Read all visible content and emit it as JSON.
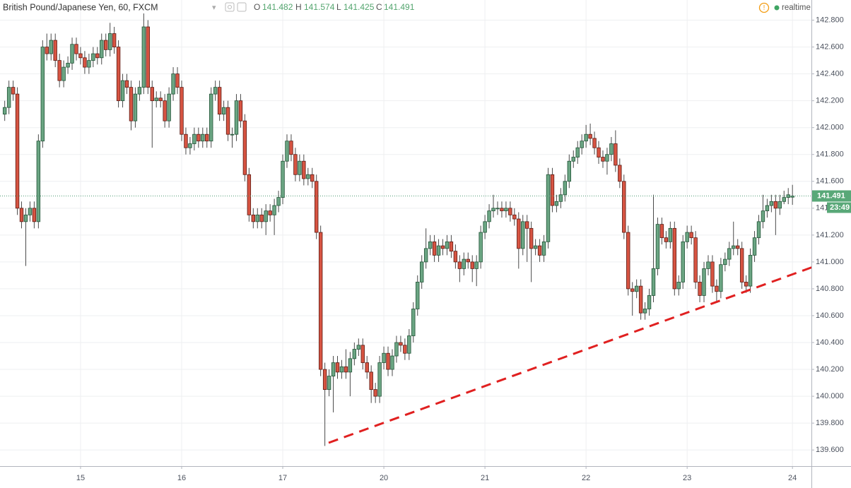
{
  "chart_data": {
    "type": "candlestick",
    "title": "British Pound/Japanese Yen, 60, FXCM",
    "ohlc_legend": [
      {
        "label": "O",
        "value": "141.482"
      },
      {
        "label": "H",
        "value": "141.574"
      },
      {
        "label": "L",
        "value": "141.425"
      },
      {
        "label": "C",
        "value": "141.491"
      }
    ],
    "status": "realtime",
    "last_price_label": "141.491",
    "countdown": "23:49",
    "up_color": "#6ba583",
    "down_color": "#d75442",
    "grid": true,
    "xlim": [
      -1.12,
      191.5
    ],
    "xticks": [
      {
        "value": 18,
        "label": "15"
      },
      {
        "value": 42,
        "label": "16"
      },
      {
        "value": 66,
        "label": "17"
      },
      {
        "value": 90,
        "label": "20"
      },
      {
        "value": 114,
        "label": "21"
      },
      {
        "value": 138,
        "label": "22"
      },
      {
        "value": 162,
        "label": "23"
      },
      {
        "value": 187,
        "label": "24"
      }
    ],
    "ylim": [
      139.48,
      142.95
    ],
    "yticks": [
      {
        "value": 139.6,
        "label": "139.600"
      },
      {
        "value": 139.8,
        "label": "139.800"
      },
      {
        "value": 140.0,
        "label": "140.000"
      },
      {
        "value": 140.2,
        "label": "140.200"
      },
      {
        "value": 140.4,
        "label": "140.400"
      },
      {
        "value": 140.6,
        "label": "140.600"
      },
      {
        "value": 140.8,
        "label": "140.800"
      },
      {
        "value": 141.0,
        "label": "141.000"
      },
      {
        "value": 141.2,
        "label": "141.200"
      },
      {
        "value": 141.4,
        "label": "141.400"
      },
      {
        "value": 141.6,
        "label": "141.600"
      },
      {
        "value": 141.8,
        "label": "141.800"
      },
      {
        "value": 142.0,
        "label": "142.000"
      },
      {
        "value": 142.2,
        "label": "142.200"
      },
      {
        "value": 142.4,
        "label": "142.400"
      },
      {
        "value": 142.6,
        "label": "142.600"
      },
      {
        "value": 142.8,
        "label": "142.800"
      }
    ],
    "open": [
      142.1,
      142.15,
      142.3,
      142.25,
      141.4,
      141.3,
      141.35,
      141.4,
      141.3,
      141.9,
      142.6,
      142.55,
      142.65,
      142.5,
      142.35,
      142.45,
      142.48,
      142.62,
      142.55,
      142.52,
      142.45,
      142.5,
      142.55,
      142.52,
      142.65,
      142.58,
      142.7,
      142.6,
      142.2,
      142.35,
      142.3,
      142.05,
      142.25,
      142.3,
      142.75,
      142.3,
      142.2,
      142.22,
      142.2,
      142.05,
      142.25,
      142.4,
      142.3,
      141.95,
      141.85,
      141.88,
      141.95,
      141.9,
      141.95,
      141.9,
      142.25,
      142.3,
      142.1,
      142.15,
      141.95,
      141.95,
      142.2,
      142.05,
      141.65,
      141.35,
      141.3,
      141.35,
      141.3,
      141.38,
      141.35,
      141.42,
      141.48,
      141.75,
      141.9,
      141.8,
      141.65,
      141.75,
      141.62,
      141.65,
      141.6,
      141.22,
      140.2,
      140.05,
      140.15,
      140.25,
      140.18,
      140.22,
      140.18,
      140.28,
      140.35,
      140.38,
      140.25,
      140.18,
      140.05,
      140.0,
      140.25,
      140.32,
      140.2,
      140.3,
      140.4,
      140.38,
      140.32,
      140.45,
      140.65,
      140.85,
      141.0,
      141.1,
      141.15,
      141.05,
      141.12,
      141.1,
      141.15,
      141.08,
      141.0,
      140.95,
      141.02,
      141.0,
      140.95,
      141.0,
      141.22,
      141.3,
      141.38,
      141.4,
      141.4,
      141.38,
      141.4,
      141.35,
      141.32,
      141.1,
      141.3,
      141.25,
      141.1,
      141.12,
      141.05,
      141.15,
      141.65,
      141.42,
      141.45,
      141.5,
      141.6,
      141.75,
      141.78,
      141.85,
      141.9,
      141.95,
      141.92,
      141.85,
      141.78,
      141.75,
      141.8,
      141.88,
      141.72,
      141.6,
      141.22,
      140.8,
      140.78,
      140.82,
      140.62,
      140.65,
      140.75,
      140.95,
      141.28,
      141.18,
      141.15,
      141.25,
      140.8,
      140.85,
      141.15,
      141.22,
      141.18,
      140.85,
      140.75,
      140.95,
      141.0,
      140.82,
      140.78,
      140.98,
      141.02,
      141.1,
      141.12,
      141.1,
      140.85,
      140.82,
      141.05,
      141.18,
      141.3,
      141.38,
      141.42,
      141.45,
      141.4,
      141.45,
      141.48,
      141.482
    ],
    "high": [
      142.2,
      142.35,
      142.35,
      142.3,
      141.45,
      141.4,
      141.45,
      141.45,
      141.95,
      142.65,
      142.7,
      142.7,
      142.7,
      142.55,
      142.5,
      142.53,
      142.67,
      142.67,
      142.6,
      142.57,
      142.55,
      142.6,
      142.6,
      142.7,
      142.7,
      142.78,
      142.75,
      142.65,
      142.4,
      142.4,
      142.35,
      142.3,
      142.35,
      142.85,
      142.8,
      142.35,
      142.27,
      142.27,
      142.25,
      142.3,
      142.45,
      142.45,
      142.35,
      142.0,
      141.93,
      142.0,
      142.0,
      142.0,
      142.0,
      142.3,
      142.35,
      142.35,
      142.2,
      142.2,
      142.0,
      142.25,
      142.25,
      142.1,
      141.7,
      141.4,
      141.4,
      141.4,
      141.43,
      141.43,
      141.47,
      141.53,
      141.8,
      141.95,
      141.95,
      141.85,
      141.8,
      141.8,
      141.7,
      141.7,
      141.65,
      141.27,
      140.25,
      140.2,
      140.3,
      140.3,
      140.27,
      140.35,
      140.33,
      140.4,
      140.43,
      140.43,
      140.3,
      140.23,
      140.1,
      140.3,
      140.37,
      140.37,
      140.35,
      140.45,
      140.45,
      140.43,
      140.5,
      140.7,
      140.9,
      141.05,
      141.25,
      141.2,
      141.2,
      141.17,
      141.17,
      141.2,
      141.2,
      141.13,
      141.05,
      141.07,
      141.07,
      141.05,
      141.05,
      141.27,
      141.35,
      141.43,
      141.5,
      141.45,
      141.45,
      141.45,
      141.45,
      141.4,
      141.37,
      141.35,
      141.35,
      141.3,
      141.17,
      141.17,
      141.2,
      141.7,
      141.7,
      141.5,
      141.55,
      141.65,
      141.8,
      141.83,
      141.9,
      141.95,
      142.02,
      142.03,
      141.97,
      141.9,
      141.83,
      141.85,
      141.93,
      141.98,
      141.77,
      141.65,
      141.27,
      140.85,
      140.87,
      140.87,
      140.7,
      140.8,
      141.5,
      141.33,
      141.33,
      141.23,
      141.3,
      141.3,
      140.9,
      141.2,
      141.27,
      141.27,
      141.23,
      140.9,
      141.0,
      141.05,
      141.05,
      140.87,
      141.03,
      141.07,
      141.15,
      141.3,
      141.17,
      141.15,
      140.9,
      141.1,
      141.23,
      141.35,
      141.5,
      141.47,
      141.5,
      141.5,
      141.5,
      141.53,
      141.55,
      141.574
    ],
    "low": [
      142.05,
      142.1,
      142.2,
      141.35,
      141.25,
      140.97,
      141.3,
      141.25,
      141.25,
      141.85,
      142.5,
      142.5,
      142.45,
      142.3,
      142.3,
      142.4,
      142.43,
      142.5,
      142.47,
      142.4,
      142.4,
      142.45,
      142.47,
      142.47,
      142.53,
      142.53,
      142.55,
      142.15,
      142.15,
      142.25,
      141.98,
      142.0,
      142.2,
      142.25,
      142.25,
      141.85,
      142.15,
      142.15,
      142.0,
      142.0,
      142.2,
      142.25,
      141.9,
      141.8,
      141.8,
      141.83,
      141.85,
      141.85,
      141.85,
      141.85,
      142.2,
      142.05,
      142.05,
      141.9,
      141.85,
      141.9,
      142.0,
      141.6,
      141.3,
      141.25,
      141.25,
      141.25,
      141.2,
      141.3,
      141.2,
      141.37,
      141.43,
      141.7,
      141.75,
      141.6,
      141.6,
      141.57,
      141.57,
      141.55,
      141.17,
      140.15,
      139.63,
      140.0,
      139.88,
      140.13,
      140.13,
      140.13,
      140.0,
      140.23,
      140.3,
      140.2,
      140.13,
      139.95,
      139.95,
      139.95,
      140.2,
      140.15,
      140.15,
      140.25,
      140.33,
      140.27,
      140.27,
      140.4,
      140.6,
      140.8,
      140.95,
      141.05,
      141.0,
      141.0,
      141.05,
      141.05,
      141.03,
      140.95,
      140.85,
      140.9,
      140.95,
      140.85,
      140.82,
      140.95,
      141.17,
      141.25,
      141.33,
      141.35,
      141.33,
      141.33,
      141.3,
      141.27,
      140.95,
      141.05,
      141.0,
      140.85,
      141.05,
      141.0,
      141.0,
      141.1,
      141.37,
      141.37,
      141.4,
      141.45,
      141.55,
      141.7,
      141.73,
      141.8,
      141.85,
      141.87,
      141.8,
      141.73,
      141.7,
      141.65,
      141.75,
      141.67,
      141.55,
      141.17,
      140.75,
      140.6,
      140.73,
      140.57,
      140.57,
      140.6,
      140.7,
      140.9,
      141.13,
      141.1,
      141.1,
      140.75,
      140.75,
      140.8,
      141.1,
      141.13,
      140.8,
      140.7,
      140.7,
      140.9,
      140.77,
      140.7,
      140.73,
      140.93,
      140.97,
      141.05,
      141.05,
      140.8,
      140.77,
      140.77,
      141.0,
      141.13,
      141.25,
      141.33,
      141.37,
      141.2,
      141.35,
      141.43,
      141.43,
      141.425
    ],
    "close": [
      142.15,
      142.3,
      142.25,
      141.4,
      141.3,
      141.35,
      141.4,
      141.3,
      141.9,
      142.6,
      142.55,
      142.65,
      142.5,
      142.35,
      142.45,
      142.48,
      142.62,
      142.55,
      142.52,
      142.45,
      142.5,
      142.55,
      142.52,
      142.65,
      142.58,
      142.7,
      142.6,
      142.2,
      142.35,
      142.3,
      142.05,
      142.25,
      142.3,
      142.75,
      142.3,
      142.2,
      142.22,
      142.2,
      142.05,
      142.25,
      142.4,
      142.3,
      141.95,
      141.85,
      141.88,
      141.95,
      141.9,
      141.95,
      141.9,
      142.25,
      142.3,
      142.1,
      142.15,
      141.95,
      141.95,
      142.2,
      142.05,
      141.65,
      141.35,
      141.3,
      141.35,
      141.3,
      141.38,
      141.35,
      141.42,
      141.48,
      141.75,
      141.9,
      141.8,
      141.65,
      141.75,
      141.62,
      141.65,
      141.6,
      141.22,
      140.2,
      140.05,
      140.15,
      140.25,
      140.18,
      140.22,
      140.18,
      140.28,
      140.35,
      140.38,
      140.25,
      140.18,
      140.05,
      140.0,
      140.25,
      140.32,
      140.2,
      140.3,
      140.4,
      140.38,
      140.32,
      140.45,
      140.65,
      140.85,
      141.0,
      141.1,
      141.15,
      141.05,
      141.12,
      141.1,
      141.15,
      141.08,
      141.0,
      140.95,
      141.02,
      141.0,
      140.95,
      141.0,
      141.22,
      141.3,
      141.38,
      141.4,
      141.4,
      141.38,
      141.4,
      141.35,
      141.32,
      141.1,
      141.3,
      141.25,
      141.1,
      141.12,
      141.05,
      141.15,
      141.65,
      141.42,
      141.45,
      141.5,
      141.6,
      141.75,
      141.78,
      141.85,
      141.9,
      141.95,
      141.92,
      141.85,
      141.78,
      141.75,
      141.8,
      141.88,
      141.72,
      141.6,
      141.22,
      140.8,
      140.78,
      140.82,
      140.62,
      140.65,
      140.75,
      140.95,
      141.28,
      141.18,
      141.15,
      141.25,
      140.8,
      140.85,
      141.15,
      141.22,
      141.18,
      140.85,
      140.75,
      140.95,
      141.0,
      140.82,
      140.78,
      140.98,
      141.02,
      141.1,
      141.12,
      141.1,
      140.85,
      140.82,
      141.05,
      141.18,
      141.3,
      141.38,
      141.42,
      141.45,
      141.4,
      141.45,
      141.48,
      141.5,
      141.491
    ]
  }
}
